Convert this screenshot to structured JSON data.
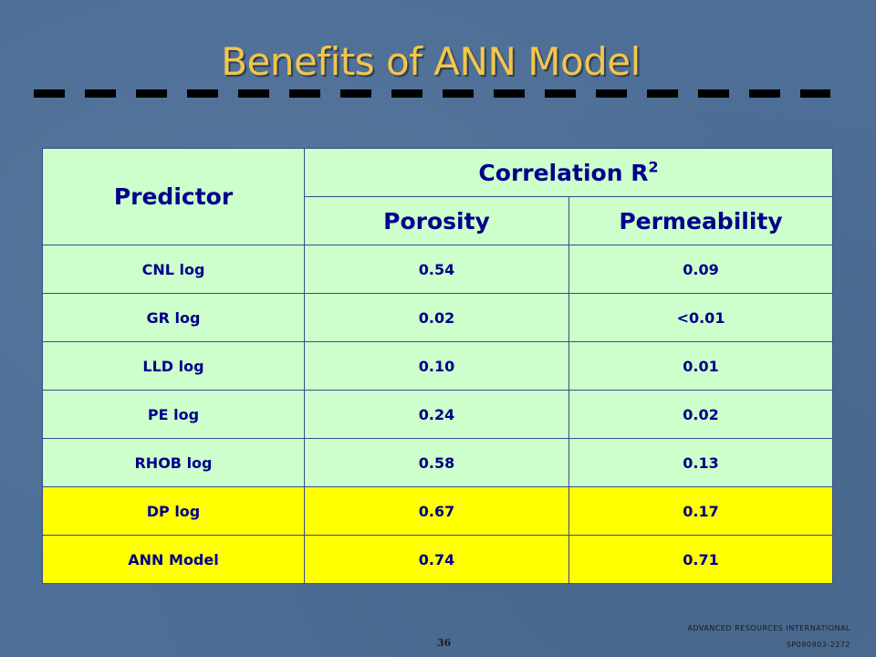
{
  "slide": {
    "title": "Benefits of ANN Model"
  },
  "table": {
    "header_predictor": "Predictor",
    "header_correlation": "Correlation R",
    "header_correlation_sup": "2",
    "header_porosity": "Porosity",
    "header_permeability": "Permeability",
    "rows": [
      {
        "predictor": "CNL log",
        "porosity": "0.54",
        "permeability": "0.09",
        "highlight": false
      },
      {
        "predictor": "GR log",
        "porosity": "0.02",
        "permeability": "<0.01",
        "highlight": false
      },
      {
        "predictor": "LLD log",
        "porosity": "0.10",
        "permeability": "0.01",
        "highlight": false
      },
      {
        "predictor": "PE log",
        "porosity": "0.24",
        "permeability": "0.02",
        "highlight": false
      },
      {
        "predictor": "RHOB log",
        "porosity": "0.58",
        "permeability": "0.13",
        "highlight": false
      },
      {
        "predictor": "DP log",
        "porosity": "0.67",
        "permeability": "0.17",
        "highlight": true
      },
      {
        "predictor": "ANN Model",
        "porosity": "0.74",
        "permeability": "0.71",
        "highlight": true
      }
    ]
  },
  "footer": {
    "page_number": "36",
    "organization": "ADVANCED RESOURCES INTERNATIONAL",
    "code": "SP090903-2272"
  },
  "colors": {
    "background": "#4d6e96",
    "title": "#f2c64c",
    "cell_green": "#ccffcc",
    "cell_highlight": "#ffff00",
    "text": "#00008a"
  }
}
